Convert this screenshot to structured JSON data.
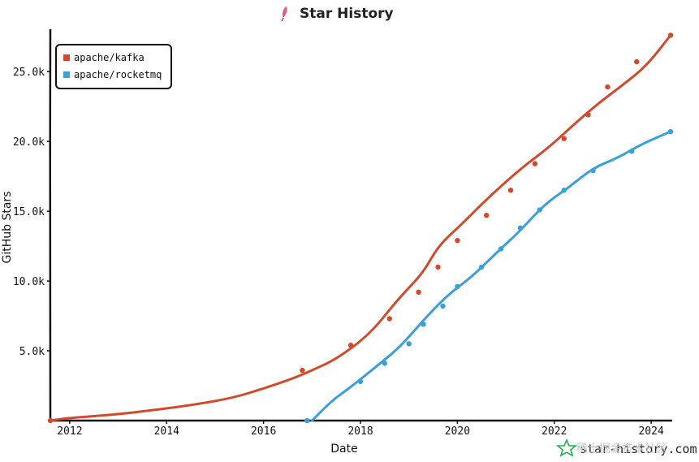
{
  "chart_data": {
    "type": "line",
    "title": "Star History",
    "xlabel": "Date",
    "ylabel": "GitHub Stars",
    "x_ticks": [
      2012,
      2014,
      2016,
      2018,
      2020,
      2022,
      2024
    ],
    "x_tick_labels": [
      "2012",
      "2014",
      "2016",
      "2018",
      "2020",
      "2022",
      "2024"
    ],
    "y_ticks": [
      5000,
      10000,
      15000,
      20000,
      25000
    ],
    "y_tick_labels": [
      "5.0k",
      "10.0k",
      "15.0k",
      "20.0k",
      "25.0k"
    ],
    "xlim": [
      2011.6,
      2024.4
    ],
    "ylim": [
      0,
      27800
    ],
    "legend_position": "top-left",
    "series": [
      {
        "name": "apache/kafka",
        "color": "#d04a2b",
        "points": [
          [
            2011.6,
            0
          ],
          [
            2012.0,
            200
          ],
          [
            2012.9,
            420
          ],
          [
            2013.8,
            780
          ],
          [
            2014.6,
            1150
          ],
          [
            2015.4,
            1650
          ],
          [
            2016.0,
            2300
          ],
          [
            2016.6,
            3000
          ],
          [
            2017.0,
            3600
          ],
          [
            2017.5,
            4400
          ],
          [
            2018.2,
            6200
          ],
          [
            2018.8,
            8800
          ],
          [
            2019.3,
            10600
          ],
          [
            2019.6,
            12500
          ],
          [
            2020.1,
            14100
          ],
          [
            2020.5,
            15500
          ],
          [
            2020.9,
            16800
          ],
          [
            2021.4,
            18300
          ],
          [
            2021.9,
            19600
          ],
          [
            2022.4,
            21200
          ],
          [
            2022.9,
            22700
          ],
          [
            2023.4,
            24000
          ],
          [
            2023.9,
            25400
          ],
          [
            2024.4,
            27600
          ]
        ],
        "markers": [
          [
            2011.6,
            0
          ],
          [
            2016.8,
            3600
          ],
          [
            2017.8,
            5400
          ],
          [
            2018.6,
            7300
          ],
          [
            2019.2,
            9200
          ],
          [
            2019.6,
            11000
          ],
          [
            2020.0,
            12900
          ],
          [
            2020.6,
            14700
          ],
          [
            2021.1,
            16500
          ],
          [
            2021.6,
            18400
          ],
          [
            2022.2,
            20200
          ],
          [
            2022.7,
            21900
          ],
          [
            2023.1,
            23900
          ],
          [
            2023.7,
            25700
          ],
          [
            2024.4,
            27600
          ]
        ]
      },
      {
        "name": "apache/rocketmq",
        "color": "#3b9fd8",
        "points": [
          [
            2017.0,
            0
          ],
          [
            2017.4,
            1400
          ],
          [
            2017.8,
            2400
          ],
          [
            2018.3,
            3800
          ],
          [
            2018.8,
            5200
          ],
          [
            2019.3,
            7200
          ],
          [
            2019.8,
            9000
          ],
          [
            2020.3,
            10300
          ],
          [
            2020.8,
            12000
          ],
          [
            2021.3,
            13600
          ],
          [
            2021.8,
            15500
          ],
          [
            2022.3,
            16700
          ],
          [
            2022.8,
            18100
          ],
          [
            2023.3,
            18800
          ],
          [
            2023.8,
            19800
          ],
          [
            2024.4,
            20700
          ]
        ],
        "markers": [
          [
            2016.9,
            0
          ],
          [
            2018.0,
            2800
          ],
          [
            2018.5,
            4100
          ],
          [
            2019.0,
            5500
          ],
          [
            2019.3,
            6900
          ],
          [
            2019.7,
            8200
          ],
          [
            2020.0,
            9600
          ],
          [
            2020.5,
            11000
          ],
          [
            2020.9,
            12300
          ],
          [
            2021.3,
            13800
          ],
          [
            2021.7,
            15100
          ],
          [
            2022.2,
            16500
          ],
          [
            2022.8,
            17900
          ],
          [
            2023.6,
            19300
          ],
          [
            2024.4,
            20700
          ]
        ]
      }
    ]
  },
  "watermark": {
    "site": "star-history.com",
    "overlay_cn": "稀土掘金技术社区"
  }
}
